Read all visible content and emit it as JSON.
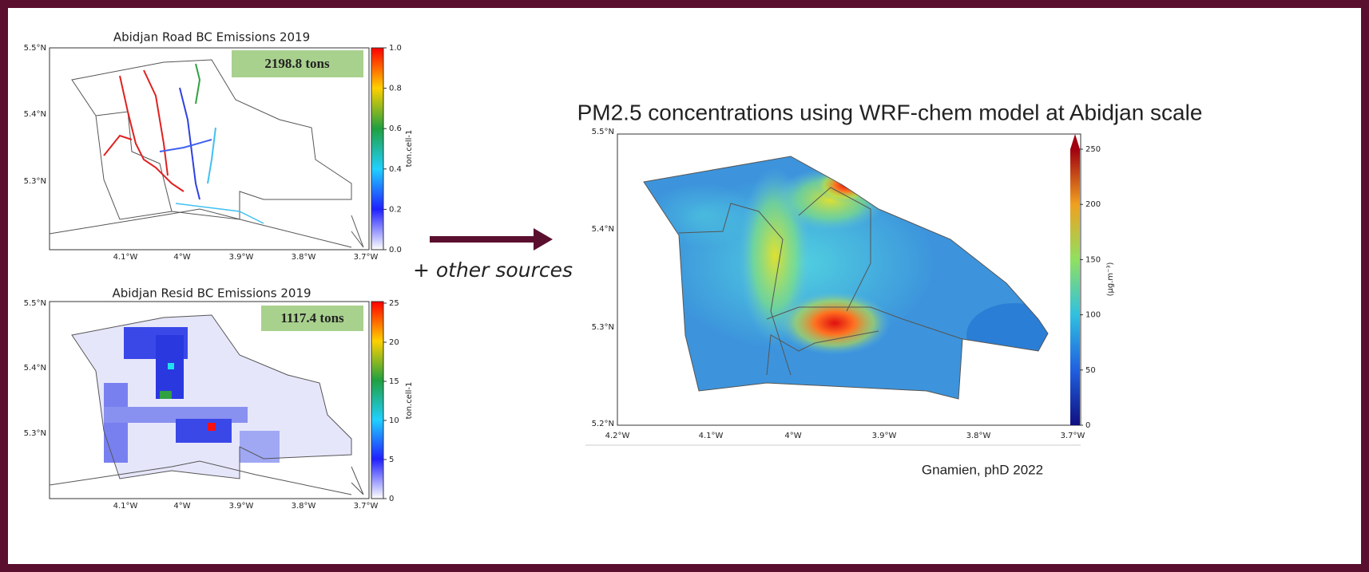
{
  "road_map": {
    "title": "Abidjan Road BC Emissions 2019",
    "total": "2198.8 tons",
    "lat_labels": [
      "5.5°N",
      "5.4°N",
      "5.3°N"
    ],
    "lon_labels": [
      "4.1°W",
      "4°W",
      "3.9°W",
      "3.8°W",
      "3.7°W"
    ],
    "colorbar": {
      "ticks": [
        "0.0",
        "0.2",
        "0.4",
        "0.6",
        "0.8",
        "1.0"
      ],
      "label": "ton.cell-1"
    }
  },
  "resid_map": {
    "title": "Abidjan Resid BC Emissions 2019",
    "total": "1117.4 tons",
    "lat_labels": [
      "5.5°N",
      "5.4°N",
      "5.3°N"
    ],
    "lon_labels": [
      "4.1°W",
      "4°W",
      "3.9°W",
      "3.8°W",
      "3.7°W"
    ],
    "colorbar": {
      "ticks": [
        "0",
        "5",
        "10",
        "15",
        "20",
        "25"
      ],
      "label": "ton.cell-1"
    }
  },
  "arrow_label": "+ other sources",
  "headline": "PM2.5 concentrations using WRF-chem model at Abidjan scale",
  "wrf_map": {
    "lat_labels": [
      "5.5°N",
      "5.4°N",
      "5.3°N",
      "5.2°N"
    ],
    "lon_labels": [
      "4.2°W",
      "4.1°W",
      "4°W",
      "3.9°W",
      "3.8°W",
      "3.7°W"
    ],
    "colorbar": {
      "ticks": [
        "0",
        "50",
        "100",
        "150",
        "200",
        "250"
      ],
      "label": "(μg.m⁻³)"
    }
  },
  "credit": "Gnamien, phD 2022"
}
